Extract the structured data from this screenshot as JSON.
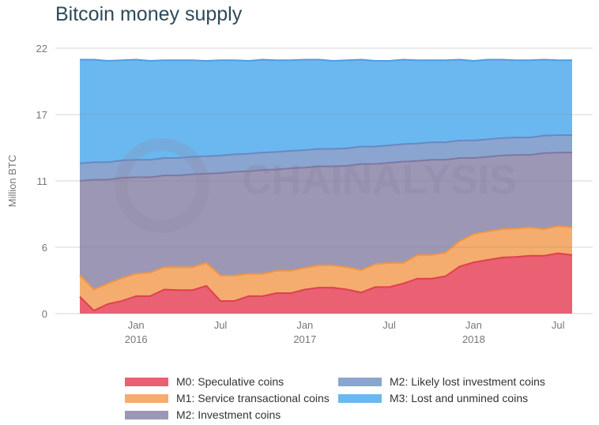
{
  "chart_data": {
    "type": "area",
    "stacked": true,
    "title": "Bitcoin money supply",
    "ylabel": "Million BTC",
    "xlabel": "",
    "ylim": [
      0,
      22
    ],
    "yticks": [
      0,
      5.5,
      11,
      16.5,
      22
    ],
    "ytick_labels": [
      "0",
      "6",
      "11",
      "17",
      "22"
    ],
    "x_start": "2015-09",
    "x_end": "2018-08",
    "x_step": "month",
    "xticks": [
      {
        "month_index": 4,
        "label": "Jan",
        "year": "2016"
      },
      {
        "month_index": 10,
        "label": "Jul",
        "year": ""
      },
      {
        "month_index": 16,
        "label": "Jan",
        "year": "2017"
      },
      {
        "month_index": 22,
        "label": "Jul",
        "year": ""
      },
      {
        "month_index": 28,
        "label": "Jan",
        "year": "2018"
      },
      {
        "month_index": 34,
        "label": "Jul",
        "year": ""
      }
    ],
    "grid": true,
    "legend_position": "bottom",
    "watermark": "CHAINALYSIS",
    "series": [
      {
        "name": "M0: Speculative coins",
        "color": "#e96173",
        "line": "#e0404f",
        "values": [
          1.4,
          0.25,
          0.8,
          1.05,
          1.45,
          1.45,
          2.0,
          1.95,
          1.95,
          2.3,
          1.05,
          1.05,
          1.45,
          1.45,
          1.7,
          1.7,
          2.0,
          2.15,
          2.15,
          2.0,
          1.75,
          2.2,
          2.2,
          2.5,
          2.9,
          2.9,
          3.1,
          3.9,
          4.25,
          4.45,
          4.65,
          4.7,
          4.8,
          4.8,
          5.0,
          4.85
        ]
      },
      {
        "name": "M1: Service transactional coins",
        "color": "#f4ad6e",
        "line": "#ee9548",
        "values": [
          1.8,
          1.75,
          1.7,
          1.9,
          1.85,
          1.95,
          1.85,
          1.9,
          1.9,
          1.9,
          2.1,
          2.1,
          1.85,
          1.85,
          1.85,
          1.85,
          1.8,
          1.85,
          1.85,
          1.85,
          1.85,
          1.9,
          2.0,
          1.7,
          1.95,
          1.95,
          1.95,
          2.1,
          2.35,
          2.35,
          2.35,
          2.35,
          2.35,
          2.2,
          2.25,
          2.3
        ]
      },
      {
        "name": "M2: Investment coins",
        "color": "#9c97b5",
        "line": "#7e78a0",
        "values": [
          7.8,
          9.1,
          8.6,
          8.3,
          8.0,
          7.9,
          7.6,
          7.6,
          7.7,
          7.4,
          8.5,
          8.6,
          8.5,
          8.6,
          8.4,
          8.5,
          8.3,
          8.2,
          8.2,
          8.4,
          8.8,
          8.3,
          8.3,
          8.4,
          7.8,
          7.9,
          7.7,
          6.9,
          6.3,
          6.2,
          6.1,
          6.1,
          6.0,
          6.3,
          6.1,
          6.2
        ]
      },
      {
        "name": "M2: Likely lost investment coins",
        "color": "#8aa5d0",
        "line": "#6a88c2",
        "values": [
          1.45,
          1.45,
          1.45,
          1.45,
          1.45,
          1.45,
          1.45,
          1.45,
          1.45,
          1.45,
          1.45,
          1.45,
          1.45,
          1.45,
          1.45,
          1.45,
          1.45,
          1.45,
          1.45,
          1.45,
          1.45,
          1.45,
          1.45,
          1.45,
          1.45,
          1.45,
          1.45,
          1.45,
          1.45,
          1.45,
          1.45,
          1.45,
          1.45,
          1.45,
          1.45,
          1.45
        ]
      },
      {
        "name": "M3: Lost and unmined coins",
        "color": "#6bb8f0",
        "line": "#4f9de0",
        "values": [
          8.6,
          8.5,
          8.4,
          8.3,
          8.3,
          8.2,
          8.1,
          8.1,
          8.0,
          7.9,
          7.9,
          7.8,
          7.7,
          7.7,
          7.6,
          7.5,
          7.5,
          7.4,
          7.3,
          7.3,
          7.2,
          7.1,
          7.0,
          7.0,
          6.9,
          6.8,
          6.8,
          6.7,
          6.6,
          6.6,
          6.5,
          6.4,
          6.4,
          6.3,
          6.2,
          6.2
        ]
      }
    ]
  }
}
